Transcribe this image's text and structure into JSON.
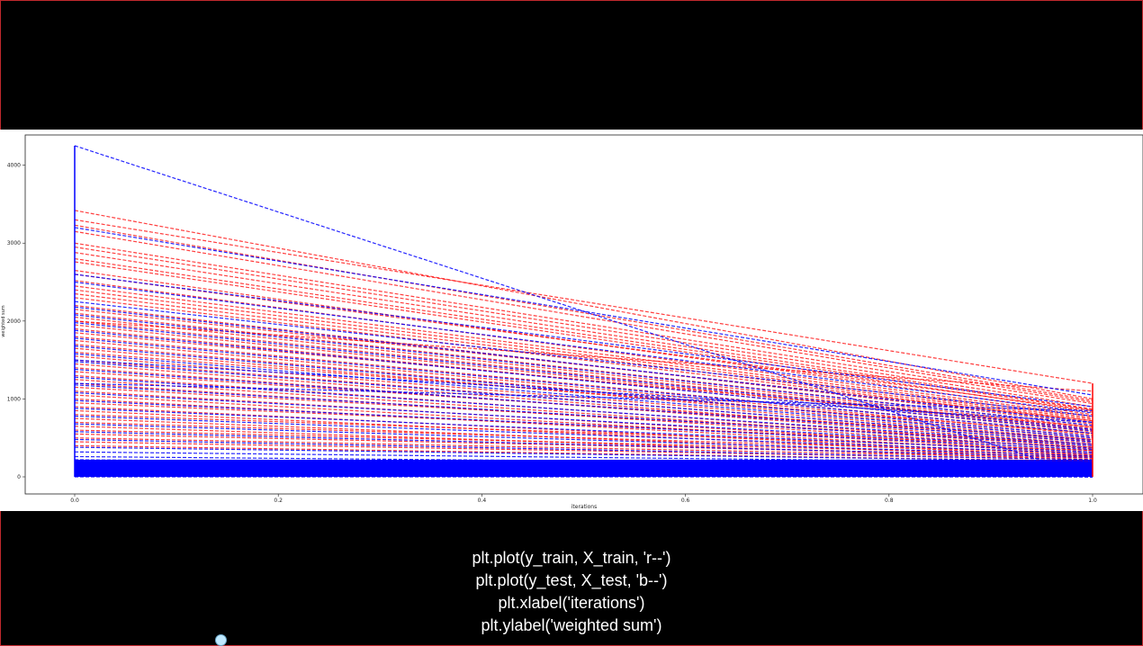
{
  "colors": {
    "train": "#ff0000",
    "test": "#0000ff",
    "background": "#000000",
    "plot_background": "#ffffff",
    "code_text": "#ffffff"
  },
  "code_lines": [
    "plt.plot(y_train, X_train, 'r--')",
    "plt.plot(y_test, X_test, 'b--')",
    "plt.xlabel('iterations')",
    "plt.ylabel('weighted sum')"
  ],
  "chart_data": {
    "type": "line",
    "title": "",
    "xlabel": "iterations",
    "ylabel": "weighted sum",
    "xlim": [
      0.0,
      1.0
    ],
    "ylim": [
      0,
      4250
    ],
    "x_ticks": [
      "0.0",
      "0.2",
      "0.4",
      "0.6",
      "0.8",
      "1.0"
    ],
    "y_ticks": [
      "0",
      "1000",
      "2000",
      "3000",
      "4000"
    ],
    "x": [
      0.0,
      1.0
    ],
    "grid": false,
    "legend": "none",
    "series": [
      {
        "style": "r--",
        "color": "#ff0000",
        "lines": [
          [
            3420,
            1000
          ],
          [
            3230,
            980
          ],
          [
            3150,
            960
          ],
          [
            3000,
            940
          ],
          [
            2950,
            900
          ],
          [
            2880,
            870
          ],
          [
            2800,
            860
          ],
          [
            2760,
            830
          ],
          [
            2650,
            800
          ],
          [
            2600,
            850
          ],
          [
            2520,
            780
          ],
          [
            2450,
            760
          ],
          [
            2400,
            740
          ],
          [
            2350,
            720
          ],
          [
            2300,
            700
          ],
          [
            2200,
            680
          ],
          [
            2150,
            720
          ],
          [
            2100,
            660
          ],
          [
            2050,
            640
          ],
          [
            2000,
            620
          ],
          [
            1950,
            600
          ],
          [
            1900,
            580
          ],
          [
            1850,
            640
          ],
          [
            1800,
            560
          ],
          [
            1750,
            540
          ],
          [
            1700,
            520
          ],
          [
            1650,
            500
          ],
          [
            1600,
            560
          ],
          [
            1550,
            480
          ],
          [
            1500,
            460
          ],
          [
            1450,
            440
          ],
          [
            1400,
            420
          ],
          [
            1350,
            480
          ],
          [
            1300,
            400
          ],
          [
            1250,
            380
          ],
          [
            1200,
            360
          ],
          [
            1150,
            420
          ],
          [
            1100,
            340
          ],
          [
            1050,
            320
          ],
          [
            1000,
            300
          ],
          [
            950,
            380
          ],
          [
            900,
            280
          ],
          [
            850,
            260
          ],
          [
            800,
            340
          ],
          [
            750,
            240
          ],
          [
            700,
            300
          ],
          [
            650,
            220
          ],
          [
            600,
            280
          ],
          [
            550,
            260
          ],
          [
            500,
            240
          ],
          [
            450,
            220
          ],
          [
            400,
            200
          ],
          [
            3300,
            1200
          ],
          [
            2000,
            1100
          ]
        ]
      },
      {
        "style": "b--",
        "color": "#0000ff",
        "lines": [
          [
            4250,
            0
          ],
          [
            3200,
            1050
          ],
          [
            2600,
            900
          ],
          [
            2500,
            820
          ],
          [
            2250,
            780
          ],
          [
            2180,
            700
          ],
          [
            2080,
            660
          ],
          [
            1980,
            610
          ],
          [
            1880,
            590
          ],
          [
            1780,
            560
          ],
          [
            1680,
            520
          ],
          [
            1580,
            500
          ],
          [
            1480,
            470
          ],
          [
            1380,
            450
          ],
          [
            1280,
            420
          ],
          [
            1180,
            400
          ],
          [
            1080,
            370
          ],
          [
            980,
            350
          ],
          [
            880,
            320
          ],
          [
            780,
            300
          ],
          [
            680,
            270
          ],
          [
            580,
            250
          ],
          [
            480,
            220
          ],
          [
            380,
            200
          ],
          [
            320,
            180
          ],
          [
            260,
            150
          ],
          [
            220,
            120
          ],
          [
            200,
            100
          ],
          [
            180,
            80
          ],
          [
            160,
            60
          ],
          [
            140,
            40
          ],
          [
            120,
            20
          ],
          [
            100,
            10
          ],
          [
            80,
            0
          ],
          [
            60,
            0
          ],
          [
            40,
            0
          ],
          [
            20,
            0
          ],
          [
            0,
            0
          ],
          [
            210,
            180
          ],
          [
            190,
            160
          ],
          [
            170,
            140
          ],
          [
            150,
            120
          ],
          [
            130,
            100
          ],
          [
            110,
            80
          ],
          [
            90,
            60
          ],
          [
            70,
            40
          ],
          [
            50,
            30
          ],
          [
            30,
            20
          ],
          [
            10,
            10
          ],
          [
            1500,
            700
          ],
          [
            1200,
            850
          ]
        ]
      }
    ]
  }
}
